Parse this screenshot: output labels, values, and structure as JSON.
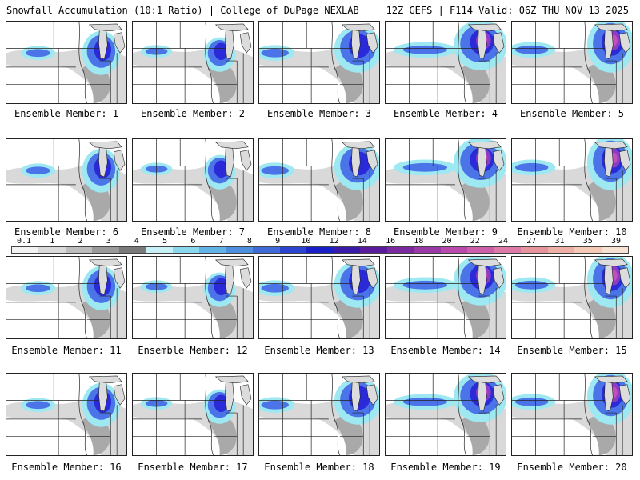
{
  "header": {
    "left_title": "Snowfall Accumulation (10:1 Ratio) | College of DuPage NEXLAB",
    "right_title": "12Z GEFS | F114 Valid: 06Z THU NOV 13 2025"
  },
  "panels": [
    {
      "label": "Ensemble Member: 1"
    },
    {
      "label": "Ensemble Member: 2"
    },
    {
      "label": "Ensemble Member: 3"
    },
    {
      "label": "Ensemble Member: 4"
    },
    {
      "label": "Ensemble Member: 5"
    },
    {
      "label": "Ensemble Member: 6"
    },
    {
      "label": "Ensemble Member: 7"
    },
    {
      "label": "Ensemble Member: 8"
    },
    {
      "label": "Ensemble Member: 9"
    },
    {
      "label": "Ensemble Member: 10"
    },
    {
      "label": "Ensemble Member: 11"
    },
    {
      "label": "Ensemble Member: 12"
    },
    {
      "label": "Ensemble Member: 13"
    },
    {
      "label": "Ensemble Member: 14"
    },
    {
      "label": "Ensemble Member: 15"
    },
    {
      "label": "Ensemble Member: 16"
    },
    {
      "label": "Ensemble Member: 17"
    },
    {
      "label": "Ensemble Member: 18"
    },
    {
      "label": "Ensemble Member: 19"
    },
    {
      "label": "Ensemble Member: 20"
    }
  ],
  "colorbar": {
    "ticks": [
      "0.1",
      "1",
      "2",
      "3",
      "4",
      "5",
      "6",
      "7",
      "8",
      "9",
      "10",
      "12",
      "14",
      "16",
      "18",
      "20",
      "22",
      "24",
      "27",
      "31",
      "35",
      "39"
    ],
    "colors": [
      "#f2f2f2",
      "#dadada",
      "#bdbdbd",
      "#9a9a9a",
      "#7a7a7a",
      "#c8f0f7",
      "#8ad8ee",
      "#62b4e6",
      "#4f8fe0",
      "#3f6ad8",
      "#2c45d0",
      "#1a20c8",
      "#3a1aa8",
      "#5a1c9c",
      "#7a2a9e",
      "#9a3aa6",
      "#b84aac",
      "#cc5eaa",
      "#de7aa8",
      "#e6959c",
      "#eeb0a6",
      "#f5cbb8",
      "#f9e2d4"
    ]
  },
  "colors": {
    "land": "#ffffff",
    "lake": "#dcdcdc",
    "boundary": "#222222",
    "gray_light": "#d9d9d9",
    "gray_dark": "#a9a9a9",
    "cyan": "#9ee8f2",
    "blue": "#4a74e8",
    "dark_blue": "#2a2ad8",
    "purple": "#8a3cc4",
    "magenta": "#c24ec0"
  }
}
